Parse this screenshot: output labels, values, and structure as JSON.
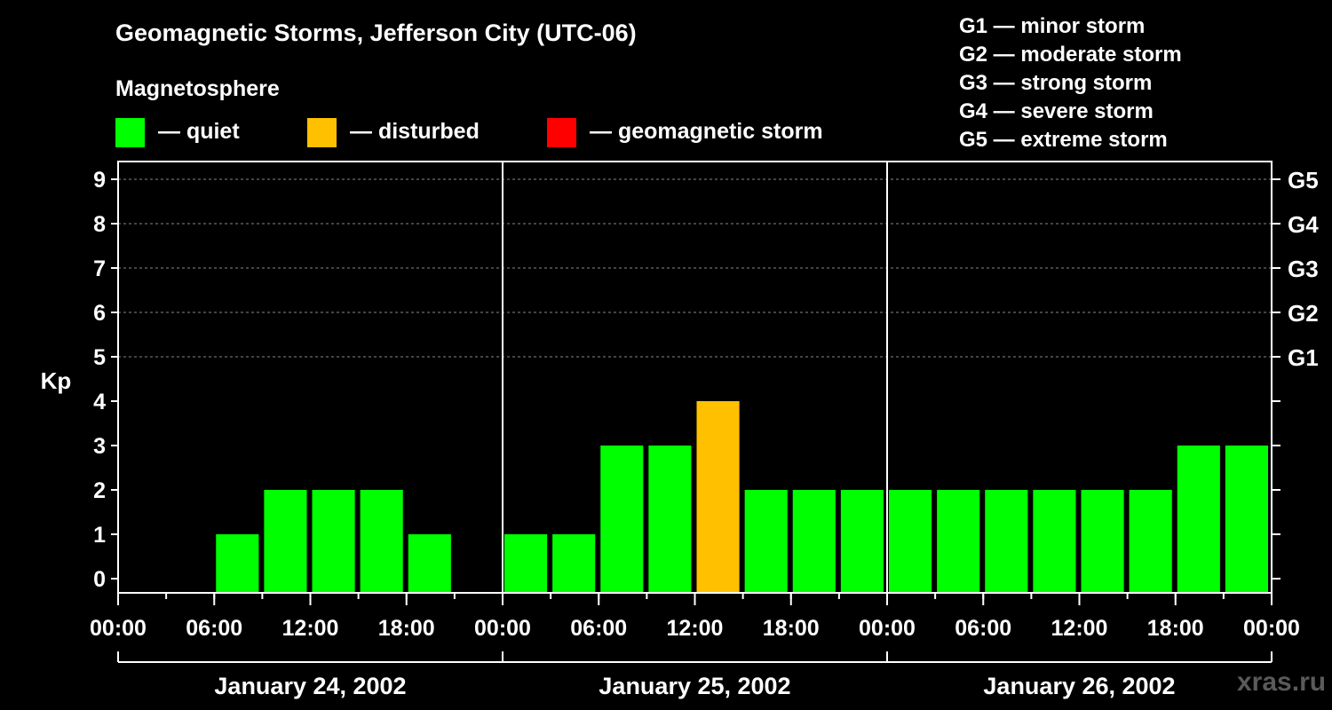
{
  "title": "Geomagnetic Storms, Jefferson City (UTC-06)",
  "magnetosphere_heading": "Magnetosphere",
  "legend": [
    {
      "label": "— quiet",
      "color": "#00ff00"
    },
    {
      "label": "— disturbed",
      "color": "#ffc000"
    },
    {
      "label": "— geomagnetic storm",
      "color": "#ff0000"
    }
  ],
  "storm_scale": [
    "G1 — minor storm",
    "G2 — moderate storm",
    "G3 — strong storm",
    "G4 — severe storm",
    "G5 — extreme storm"
  ],
  "watermark": "xras.ru",
  "colors": {
    "quiet": "#00ff00",
    "disturbed": "#ffc000",
    "storm": "#ff0000",
    "background": "#000000",
    "axis": "#ffffff"
  },
  "chart_data": {
    "type": "bar",
    "ylabel": "Kp",
    "ylim": [
      0,
      9
    ],
    "yticks": [
      "0",
      "1",
      "2",
      "3",
      "4",
      "5",
      "6",
      "7",
      "8",
      "9"
    ],
    "right_tick_labels": [
      {
        "kp": 5,
        "label": "G1"
      },
      {
        "kp": 6,
        "label": "G2"
      },
      {
        "kp": 7,
        "label": "G3"
      },
      {
        "kp": 8,
        "label": "G4"
      },
      {
        "kp": 9,
        "label": "G5"
      }
    ],
    "xtick_labels": [
      "00:00",
      "06:00",
      "12:00",
      "18:00",
      "00:00",
      "06:00",
      "12:00",
      "18:00",
      "00:00",
      "06:00",
      "12:00",
      "18:00",
      "00:00"
    ],
    "days": [
      "January 24, 2002",
      "January 25, 2002",
      "January 26, 2002"
    ],
    "interval_hours": 3,
    "values": [
      0,
      0,
      1,
      2,
      2,
      2,
      1,
      0,
      1,
      1,
      3,
      3,
      4,
      2,
      2,
      2,
      2,
      2,
      2,
      2,
      2,
      2,
      3,
      3
    ],
    "status": [
      "quiet",
      "quiet",
      "quiet",
      "quiet",
      "quiet",
      "quiet",
      "quiet",
      "quiet",
      "quiet",
      "quiet",
      "quiet",
      "quiet",
      "disturbed",
      "quiet",
      "quiet",
      "quiet",
      "quiet",
      "quiet",
      "quiet",
      "quiet",
      "quiet",
      "quiet",
      "quiet",
      "quiet"
    ],
    "grid": "dashed horizontal at Kp 5-9"
  }
}
